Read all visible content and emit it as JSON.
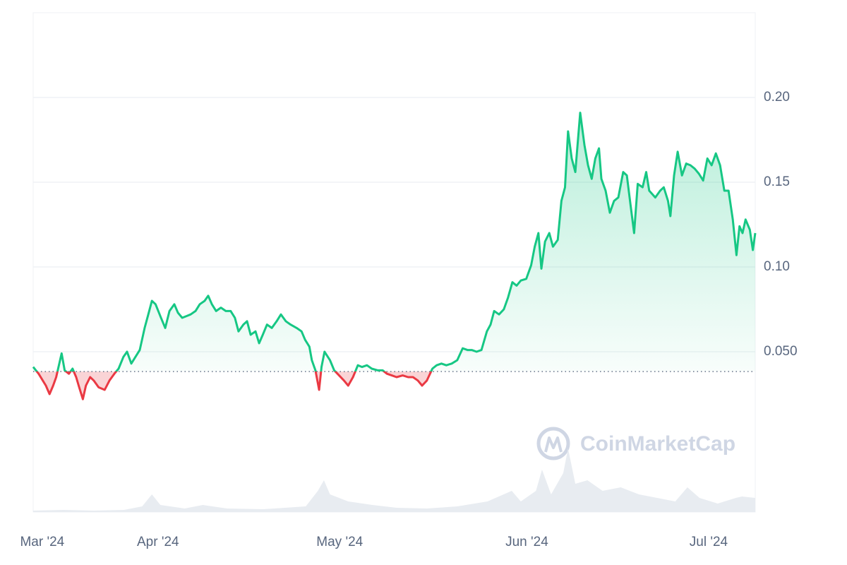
{
  "watermark": "CoinMarketCap",
  "chart_data": {
    "type": "line",
    "x": [
      0.0,
      0.9,
      2.1,
      2.7,
      3.3,
      3.8,
      4.7,
      5.2,
      5.9,
      6.5,
      7.1,
      7.6,
      8.2,
      8.7,
      9.4,
      10.0,
      10.8,
      11.8,
      12.6,
      13.4,
      14.1,
      14.9,
      15.5,
      16.2,
      16.9,
      17.6,
      18.4,
      19.0,
      19.6,
      20.2,
      21.1,
      21.8,
      22.5,
      23.3,
      23.9,
      24.6,
      25.3,
      26.0,
      26.8,
      27.5,
      28.3,
      28.9,
      29.5,
      30.2,
      31.0,
      31.8,
      32.6,
      33.3,
      33.9,
      34.7,
      35.3,
      35.9,
      36.7,
      37.3,
      37.9,
      38.6,
      39.4,
      40.2,
      40.9,
      41.7,
      42.5,
      43.5,
      44.3,
      44.9,
      45.6,
      46.0,
      46.6,
      47.2,
      47.6,
      48.1,
      49.0,
      49.7,
      50.5,
      51.3,
      52.0,
      52.8,
      53.6,
      54.3,
      55.1,
      55.9,
      56.9,
      57.7,
      58.4,
      59.2,
      60.0,
      61.0,
      61.9,
      62.7,
      63.5,
      64.2,
      65.0,
      65.9,
      66.6,
      67.4,
      68.2,
      69.1,
      70.0,
      70.9,
      71.7,
      72.4,
      73.2,
      74.0,
      74.9,
      75.5,
      76.1,
      76.9,
      77.7,
      78.4,
      79.1,
      79.8,
      80.5,
      81.4,
      82.2,
      82.8,
      83.4,
      83.9,
      84.5,
      85.2,
      85.8,
      86.6,
      87.2,
      87.8,
      88.3,
      88.9,
      89.5,
      90.3,
      91.0,
      91.6,
      92.2,
      92.8,
      93.4,
      93.8,
      94.5,
      95.2,
      95.9,
      96.6,
      97.4,
      98.0,
      98.6,
      99.2,
      99.8,
      100.6,
      101.2,
      101.7,
      102.7,
      103.5,
      104.1,
      104.8,
      105.2,
      105.8,
      106.4,
      107.1,
      107.8,
      108.5,
      109.2,
      109.9,
      110.6,
      111.3,
      112.0,
      112.7,
      113.4,
      114.1,
      114.8,
      115.5,
      116.1,
      116.6,
      117.1,
      117.6,
      118.3,
      118.8,
      119.2
    ],
    "series": [
      {
        "name": "Price",
        "color": "#16c784",
        "down_color": "#ea3943",
        "values": [
          0.041,
          0.037,
          0.03,
          0.025,
          0.03,
          0.035,
          0.049,
          0.039,
          0.037,
          0.04,
          0.035,
          0.029,
          0.022,
          0.03,
          0.035,
          0.033,
          0.029,
          0.0275,
          0.033,
          0.037,
          0.04,
          0.047,
          0.05,
          0.043,
          0.047,
          0.051,
          0.064,
          0.072,
          0.08,
          0.078,
          0.07,
          0.064,
          0.074,
          0.078,
          0.073,
          0.07,
          0.071,
          0.072,
          0.074,
          0.078,
          0.08,
          0.083,
          0.078,
          0.074,
          0.076,
          0.074,
          0.074,
          0.07,
          0.062,
          0.066,
          0.068,
          0.06,
          0.062,
          0.055,
          0.06,
          0.066,
          0.064,
          0.068,
          0.072,
          0.068,
          0.066,
          0.064,
          0.062,
          0.057,
          0.053,
          0.045,
          0.039,
          0.0275,
          0.041,
          0.05,
          0.045,
          0.039,
          0.036,
          0.033,
          0.03,
          0.035,
          0.042,
          0.041,
          0.042,
          0.04,
          0.039,
          0.039,
          0.037,
          0.036,
          0.035,
          0.036,
          0.035,
          0.035,
          0.033,
          0.03,
          0.033,
          0.04,
          0.042,
          0.043,
          0.042,
          0.043,
          0.045,
          0.052,
          0.051,
          0.051,
          0.05,
          0.051,
          0.062,
          0.066,
          0.074,
          0.072,
          0.075,
          0.082,
          0.091,
          0.089,
          0.092,
          0.093,
          0.101,
          0.112,
          0.12,
          0.099,
          0.115,
          0.12,
          0.112,
          0.116,
          0.139,
          0.147,
          0.18,
          0.164,
          0.156,
          0.191,
          0.172,
          0.16,
          0.152,
          0.164,
          0.17,
          0.152,
          0.145,
          0.132,
          0.139,
          0.141,
          0.156,
          0.154,
          0.137,
          0.12,
          0.149,
          0.147,
          0.156,
          0.145,
          0.141,
          0.145,
          0.147,
          0.139,
          0.13,
          0.154,
          0.168,
          0.154,
          0.161,
          0.16,
          0.158,
          0.155,
          0.151,
          0.164,
          0.16,
          0.167,
          0.16,
          0.145,
          0.145,
          0.128,
          0.107,
          0.124,
          0.12,
          0.128,
          0.122,
          0.11,
          0.12
        ]
      }
    ],
    "baseline": 0.0383,
    "volume": {
      "color": "#e8ecf1",
      "x": [
        0,
        5,
        10,
        15,
        18,
        19.6,
        21,
        25,
        28,
        32,
        38,
        45,
        47,
        48,
        49,
        52,
        56,
        60,
        65,
        70,
        75,
        79,
        80.5,
        83,
        84,
        85.5,
        87.5,
        88.3,
        89.5,
        91.5,
        94,
        97,
        100,
        103,
        106,
        108,
        110,
        113,
        116,
        117,
        119.2
      ],
      "values": [
        2,
        3,
        2,
        3,
        8,
        25,
        10,
        5,
        10,
        5,
        4,
        8,
        30,
        45,
        25,
        15,
        10,
        6,
        5,
        8,
        15,
        30,
        15,
        30,
        60,
        25,
        55,
        90,
        40,
        45,
        30,
        35,
        25,
        20,
        15,
        35,
        20,
        12,
        20,
        22,
        20
      ],
      "ylim": [
        0,
        100
      ]
    },
    "xlim": [
      0,
      119.2
    ],
    "xticks": [
      {
        "value": 1.5,
        "label": "Mar '24"
      },
      {
        "value": 20.6,
        "label": "Apr '24"
      },
      {
        "value": 50.6,
        "label": "May '24"
      },
      {
        "value": 81.5,
        "label": "Jun '24"
      },
      {
        "value": 111.5,
        "label": "Jul '24"
      }
    ],
    "ylim": [
      -0.0446,
      0.25
    ],
    "yticks": [
      {
        "value": 0.05,
        "label": "0.050"
      },
      {
        "value": 0.1,
        "label": "0.10"
      },
      0.15,
      {
        "value": 0.2,
        "label": "0.20"
      }
    ],
    "grid": true
  }
}
